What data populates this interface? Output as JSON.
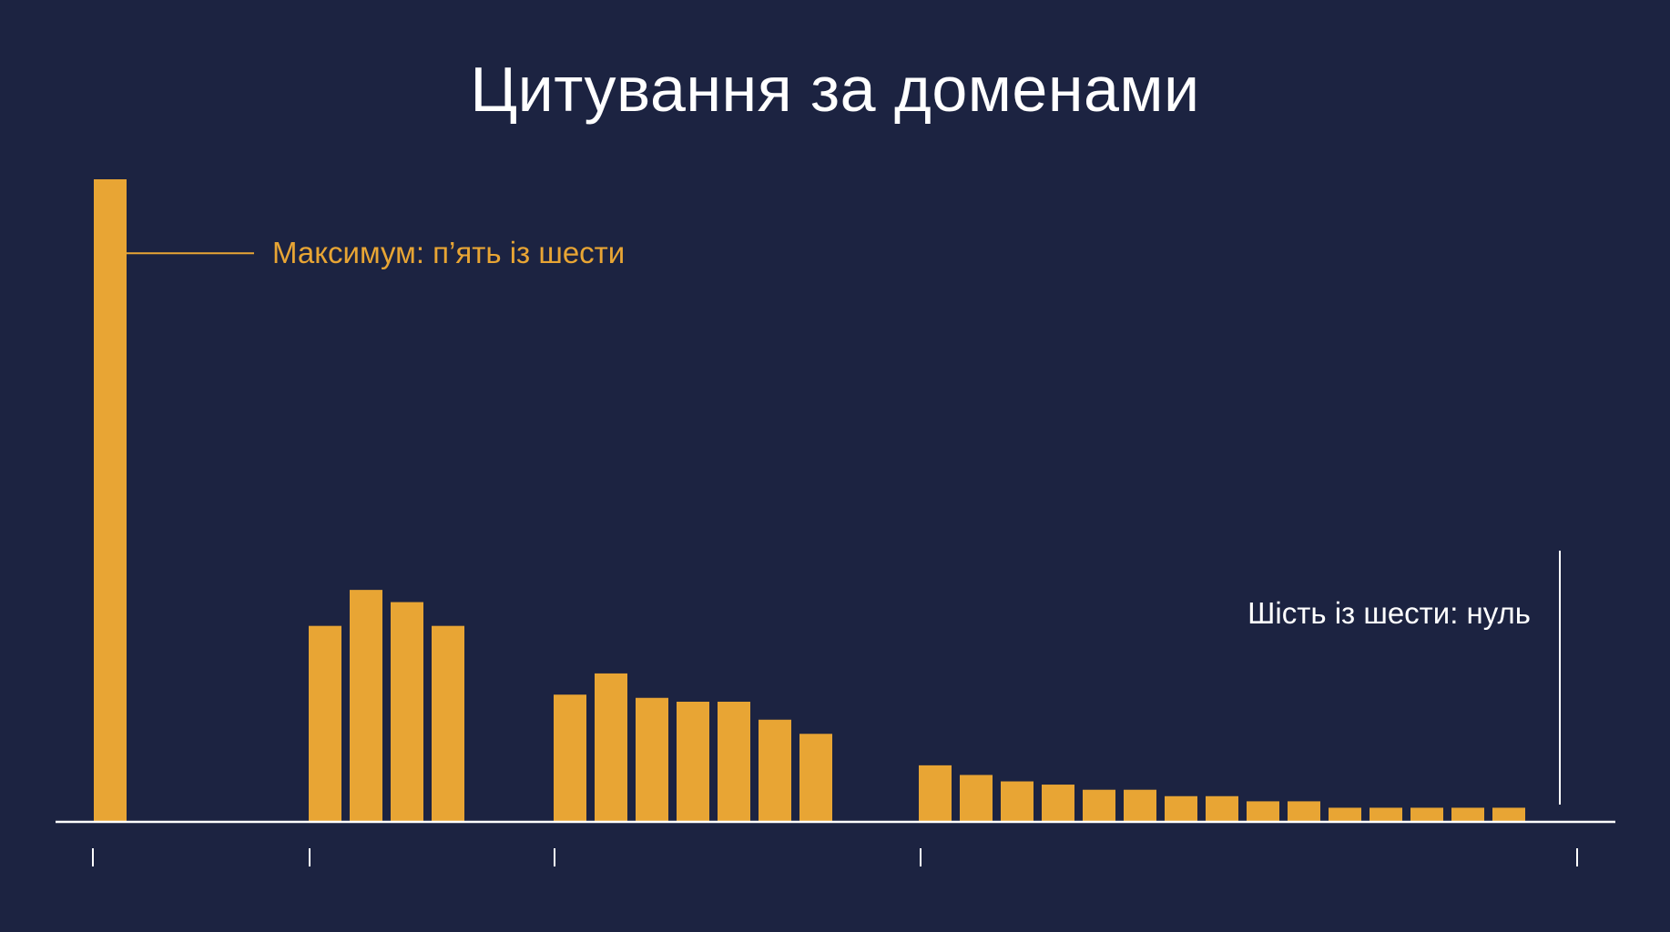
{
  "title": "Цитування за доменами",
  "colors": {
    "background": "#1c2341",
    "bar": "#e8a534",
    "axis": "#ffffff",
    "title": "#ffffff",
    "max_annotation": "#e8a534",
    "zero_annotation": "#ffffff"
  },
  "chart_data": {
    "type": "bar",
    "title": "Цитування за доменами",
    "xlabel": "",
    "ylabel": "",
    "ylim": [
      0,
      1
    ],
    "grid": false,
    "legend": "none",
    "y_axis_shown": false,
    "groups": [
      {
        "values": [
          1.0
        ]
      },
      {
        "values": [
          0.305,
          0.361,
          0.342,
          0.305
        ]
      },
      {
        "values": [
          0.198,
          0.231,
          0.193,
          0.187,
          0.187,
          0.159,
          0.137
        ]
      },
      {
        "values": [
          0.088,
          0.073,
          0.063,
          0.058,
          0.05,
          0.05,
          0.04,
          0.04,
          0.032,
          0.032,
          0.022,
          0.022,
          0.022,
          0.022,
          0.022
        ]
      },
      {
        "values": [
          0
        ]
      }
    ],
    "annotations": [
      {
        "text": "Максимум: п’ять із шести",
        "group": 0,
        "bar": 0,
        "value": 0.885,
        "side": "right"
      },
      {
        "text": "Шість із шести: нуль",
        "group": 4,
        "bar": 0,
        "value": 0.34,
        "side": "left"
      }
    ]
  }
}
